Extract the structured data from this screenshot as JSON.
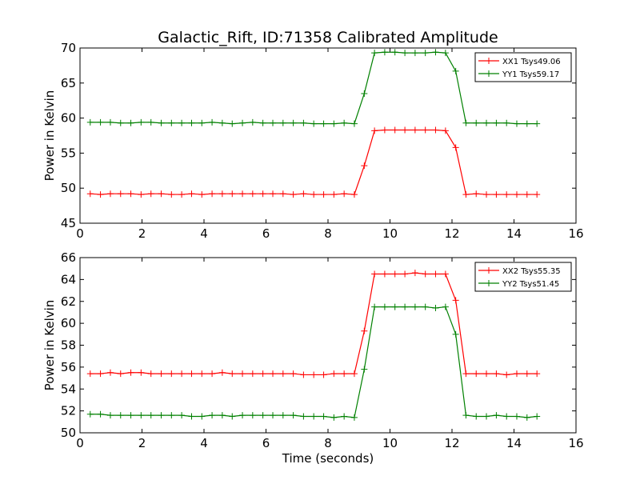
{
  "figure": {
    "title": "Galactic_Rift, ID:71358 Calibrated Amplitude"
  },
  "chart_data": [
    {
      "type": "line",
      "title": "Galactic_Rift, ID:71358 Calibrated Amplitude",
      "xlabel": "",
      "ylabel": "Power in Kelvin",
      "xlim": [
        0,
        16
      ],
      "ylim": [
        45,
        70
      ],
      "xticks": [
        0,
        2,
        4,
        6,
        8,
        10,
        12,
        14,
        16
      ],
      "yticks": [
        45,
        50,
        55,
        60,
        65,
        70
      ],
      "legend_position": "top-right",
      "grid": false,
      "x": [
        0.33,
        0.66,
        0.98,
        1.31,
        1.64,
        1.97,
        2.29,
        2.62,
        2.95,
        3.28,
        3.6,
        3.93,
        4.26,
        4.59,
        4.91,
        5.24,
        5.57,
        5.9,
        6.22,
        6.55,
        6.88,
        7.21,
        7.54,
        7.86,
        8.19,
        8.52,
        8.85,
        9.17,
        9.5,
        9.83,
        10.16,
        10.48,
        10.81,
        11.14,
        11.47,
        11.79,
        12.12,
        12.45,
        12.78,
        13.11,
        13.43,
        13.76,
        14.09,
        14.42,
        14.74
      ],
      "series": [
        {
          "name": "XX1 Tsys49.06",
          "color": "#ff0000",
          "marker": "+",
          "values": [
            49.2,
            49.1,
            49.2,
            49.2,
            49.2,
            49.1,
            49.2,
            49.2,
            49.1,
            49.1,
            49.2,
            49.1,
            49.2,
            49.2,
            49.2,
            49.2,
            49.2,
            49.2,
            49.2,
            49.2,
            49.1,
            49.2,
            49.1,
            49.1,
            49.1,
            49.2,
            49.1,
            53.2,
            58.2,
            58.3,
            58.3,
            58.3,
            58.3,
            58.3,
            58.3,
            58.2,
            55.8,
            49.1,
            49.2,
            49.1,
            49.1,
            49.1,
            49.1,
            49.1,
            49.1
          ]
        },
        {
          "name": "YY1 Tsys59.17",
          "color": "#008000",
          "marker": "+",
          "values": [
            59.4,
            59.4,
            59.4,
            59.3,
            59.3,
            59.4,
            59.4,
            59.3,
            59.3,
            59.3,
            59.3,
            59.3,
            59.4,
            59.3,
            59.2,
            59.3,
            59.4,
            59.3,
            59.3,
            59.3,
            59.3,
            59.3,
            59.2,
            59.2,
            59.2,
            59.3,
            59.2,
            63.5,
            69.3,
            69.4,
            69.4,
            69.3,
            69.3,
            69.3,
            69.4,
            69.3,
            66.7,
            59.3,
            59.3,
            59.3,
            59.3,
            59.3,
            59.2,
            59.2,
            59.2
          ]
        }
      ]
    },
    {
      "type": "line",
      "title": "",
      "xlabel": "Time (seconds)",
      "ylabel": "Power in Kelvin",
      "xlim": [
        0,
        16
      ],
      "ylim": [
        50,
        66
      ],
      "xticks": [
        0,
        2,
        4,
        6,
        8,
        10,
        12,
        14,
        16
      ],
      "yticks": [
        50,
        52,
        54,
        56,
        58,
        60,
        62,
        64,
        66
      ],
      "legend_position": "top-right",
      "grid": false,
      "x": [
        0.33,
        0.66,
        0.98,
        1.31,
        1.64,
        1.97,
        2.29,
        2.62,
        2.95,
        3.28,
        3.6,
        3.93,
        4.26,
        4.59,
        4.91,
        5.24,
        5.57,
        5.9,
        6.22,
        6.55,
        6.88,
        7.21,
        7.54,
        7.86,
        8.19,
        8.52,
        8.85,
        9.17,
        9.5,
        9.83,
        10.16,
        10.48,
        10.81,
        11.14,
        11.47,
        11.79,
        12.12,
        12.45,
        12.78,
        13.11,
        13.43,
        13.76,
        14.09,
        14.42,
        14.74
      ],
      "series": [
        {
          "name": "XX2 Tsys55.35",
          "color": "#ff0000",
          "marker": "+",
          "values": [
            55.4,
            55.4,
            55.5,
            55.4,
            55.5,
            55.5,
            55.4,
            55.4,
            55.4,
            55.4,
            55.4,
            55.4,
            55.4,
            55.5,
            55.4,
            55.4,
            55.4,
            55.4,
            55.4,
            55.4,
            55.4,
            55.3,
            55.3,
            55.3,
            55.4,
            55.4,
            55.4,
            59.3,
            64.5,
            64.5,
            64.5,
            64.5,
            64.6,
            64.5,
            64.5,
            64.5,
            62.1,
            55.4,
            55.4,
            55.4,
            55.4,
            55.3,
            55.4,
            55.4,
            55.4
          ]
        },
        {
          "name": "YY2 Tsys51.45",
          "color": "#008000",
          "marker": "+",
          "values": [
            51.7,
            51.7,
            51.6,
            51.6,
            51.6,
            51.6,
            51.6,
            51.6,
            51.6,
            51.6,
            51.5,
            51.5,
            51.6,
            51.6,
            51.5,
            51.6,
            51.6,
            51.6,
            51.6,
            51.6,
            51.6,
            51.5,
            51.5,
            51.5,
            51.4,
            51.5,
            51.4,
            55.8,
            61.5,
            61.5,
            61.5,
            61.5,
            61.5,
            61.5,
            61.4,
            61.5,
            59.0,
            51.6,
            51.5,
            51.5,
            51.6,
            51.5,
            51.5,
            51.4,
            51.5
          ]
        }
      ]
    }
  ]
}
